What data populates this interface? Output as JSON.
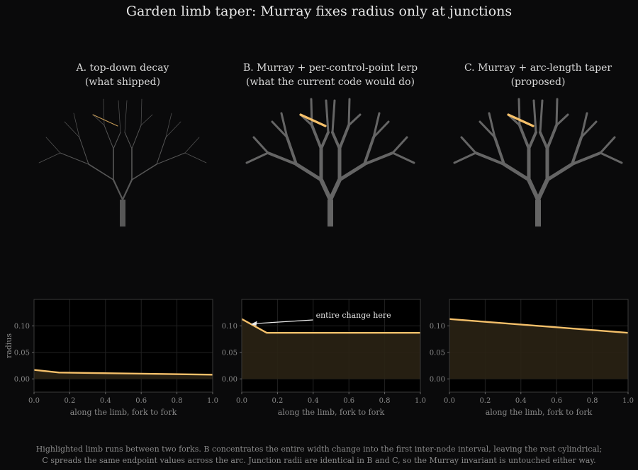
{
  "title": "Garden limb taper: Murray fixes radius only at junctions",
  "colors": {
    "background": "#0a0a0b",
    "plot_bg": "#000000",
    "highlight": "#f5c06a",
    "branch": "#6b6b6b",
    "fill": "#2a2214"
  },
  "panels": [
    {
      "caption_line1": "A. top-down decay",
      "caption_line2": "(what shipped)",
      "tree_style": "thin"
    },
    {
      "caption_line1": "B. Murray + per-control-point lerp",
      "caption_line2": "(what the current code would do)",
      "tree_style": "thick"
    },
    {
      "caption_line1": "C. Murray + arc-length taper",
      "caption_line2": "(proposed)",
      "tree_style": "thick"
    }
  ],
  "footer": {
    "line1": "Highlighted limb runs between two forks. B concentrates the entire width change into the first inter-node interval, leaving the rest cylindrical;",
    "line2": "C spreads the same endpoint values across the arc. Junction radii are identical in B and C, so the Murray invariant is untouched either way."
  },
  "chart_data": [
    {
      "type": "area",
      "xlabel": "along the limb, fork to fork",
      "ylabel": "radius",
      "xlim": [
        0,
        1
      ],
      "ylim": [
        -0.025,
        0.15
      ],
      "xticks": [
        "0.0",
        "0.2",
        "0.4",
        "0.6",
        "0.8",
        "1.0"
      ],
      "yticks": [
        "0.00",
        "0.05",
        "0.10"
      ],
      "grid": true,
      "x": [
        0.0,
        0.14,
        1.0
      ],
      "y": [
        0.017,
        0.012,
        0.008
      ]
    },
    {
      "type": "area",
      "xlabel": "along the limb, fork to fork",
      "ylabel": "",
      "xlim": [
        0,
        1
      ],
      "ylim": [
        -0.025,
        0.15
      ],
      "xticks": [
        "0.0",
        "0.2",
        "0.4",
        "0.6",
        "0.8",
        "1.0"
      ],
      "yticks": [
        "0.00",
        "0.05",
        "0.10"
      ],
      "grid": true,
      "x": [
        0.0,
        0.14,
        1.0
      ],
      "y": [
        0.113,
        0.087,
        0.087
      ],
      "annotation": {
        "text": "entire change here",
        "x": 0.05,
        "y": 0.103
      }
    },
    {
      "type": "area",
      "xlabel": "along the limb, fork to fork",
      "ylabel": "",
      "xlim": [
        0,
        1
      ],
      "ylim": [
        -0.025,
        0.15
      ],
      "xticks": [
        "0.0",
        "0.2",
        "0.4",
        "0.6",
        "0.8",
        "1.0"
      ],
      "yticks": [
        "0.00",
        "0.05",
        "0.10"
      ],
      "grid": true,
      "x": [
        0.0,
        1.0
      ],
      "y": [
        0.113,
        0.087
      ]
    }
  ]
}
